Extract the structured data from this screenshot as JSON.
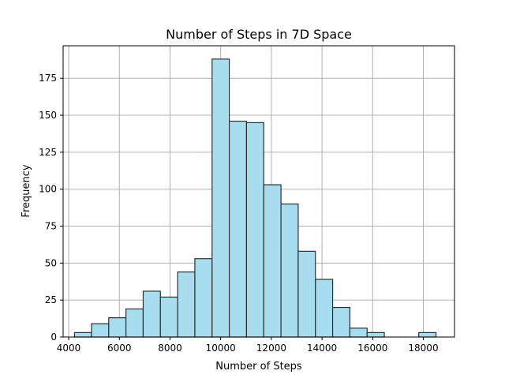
{
  "chart_data": {
    "type": "bar",
    "title": "Number of Steps in 7D Space",
    "xlabel": "Number of Steps",
    "ylabel": "Frequency",
    "xlim": [
      3780,
      19230
    ],
    "ylim": [
      0,
      197
    ],
    "x_ticks": [
      4000,
      6000,
      8000,
      10000,
      12000,
      14000,
      16000,
      18000
    ],
    "y_ticks": [
      0,
      25,
      50,
      75,
      100,
      125,
      150,
      175
    ],
    "grid": true,
    "legend": "none",
    "colors": {
      "bar_fill": "#a8dcef",
      "bar_edge": "#2f2f2f",
      "grid": "#b0b0b0",
      "axes": "#000000"
    },
    "bins": [
      {
        "start": 4230,
        "end": 4900,
        "count": 3
      },
      {
        "start": 4900,
        "end": 5580,
        "count": 9
      },
      {
        "start": 5580,
        "end": 6260,
        "count": 13
      },
      {
        "start": 6260,
        "end": 6940,
        "count": 19
      },
      {
        "start": 6940,
        "end": 7620,
        "count": 31
      },
      {
        "start": 7620,
        "end": 8300,
        "count": 27
      },
      {
        "start": 8300,
        "end": 8980,
        "count": 44
      },
      {
        "start": 8980,
        "end": 9660,
        "count": 53
      },
      {
        "start": 9660,
        "end": 10340,
        "count": 188
      },
      {
        "start": 10340,
        "end": 11020,
        "count": 146
      },
      {
        "start": 11020,
        "end": 11700,
        "count": 145
      },
      {
        "start": 11700,
        "end": 12380,
        "count": 103
      },
      {
        "start": 12380,
        "end": 13060,
        "count": 90
      },
      {
        "start": 13060,
        "end": 13740,
        "count": 58
      },
      {
        "start": 13740,
        "end": 14420,
        "count": 39
      },
      {
        "start": 14420,
        "end": 15100,
        "count": 20
      },
      {
        "start": 15100,
        "end": 15780,
        "count": 6
      },
      {
        "start": 15780,
        "end": 16460,
        "count": 3
      },
      {
        "start": 16460,
        "end": 17140,
        "count": 0
      },
      {
        "start": 17140,
        "end": 17820,
        "count": 0
      },
      {
        "start": 17820,
        "end": 18500,
        "count": 3
      }
    ]
  }
}
